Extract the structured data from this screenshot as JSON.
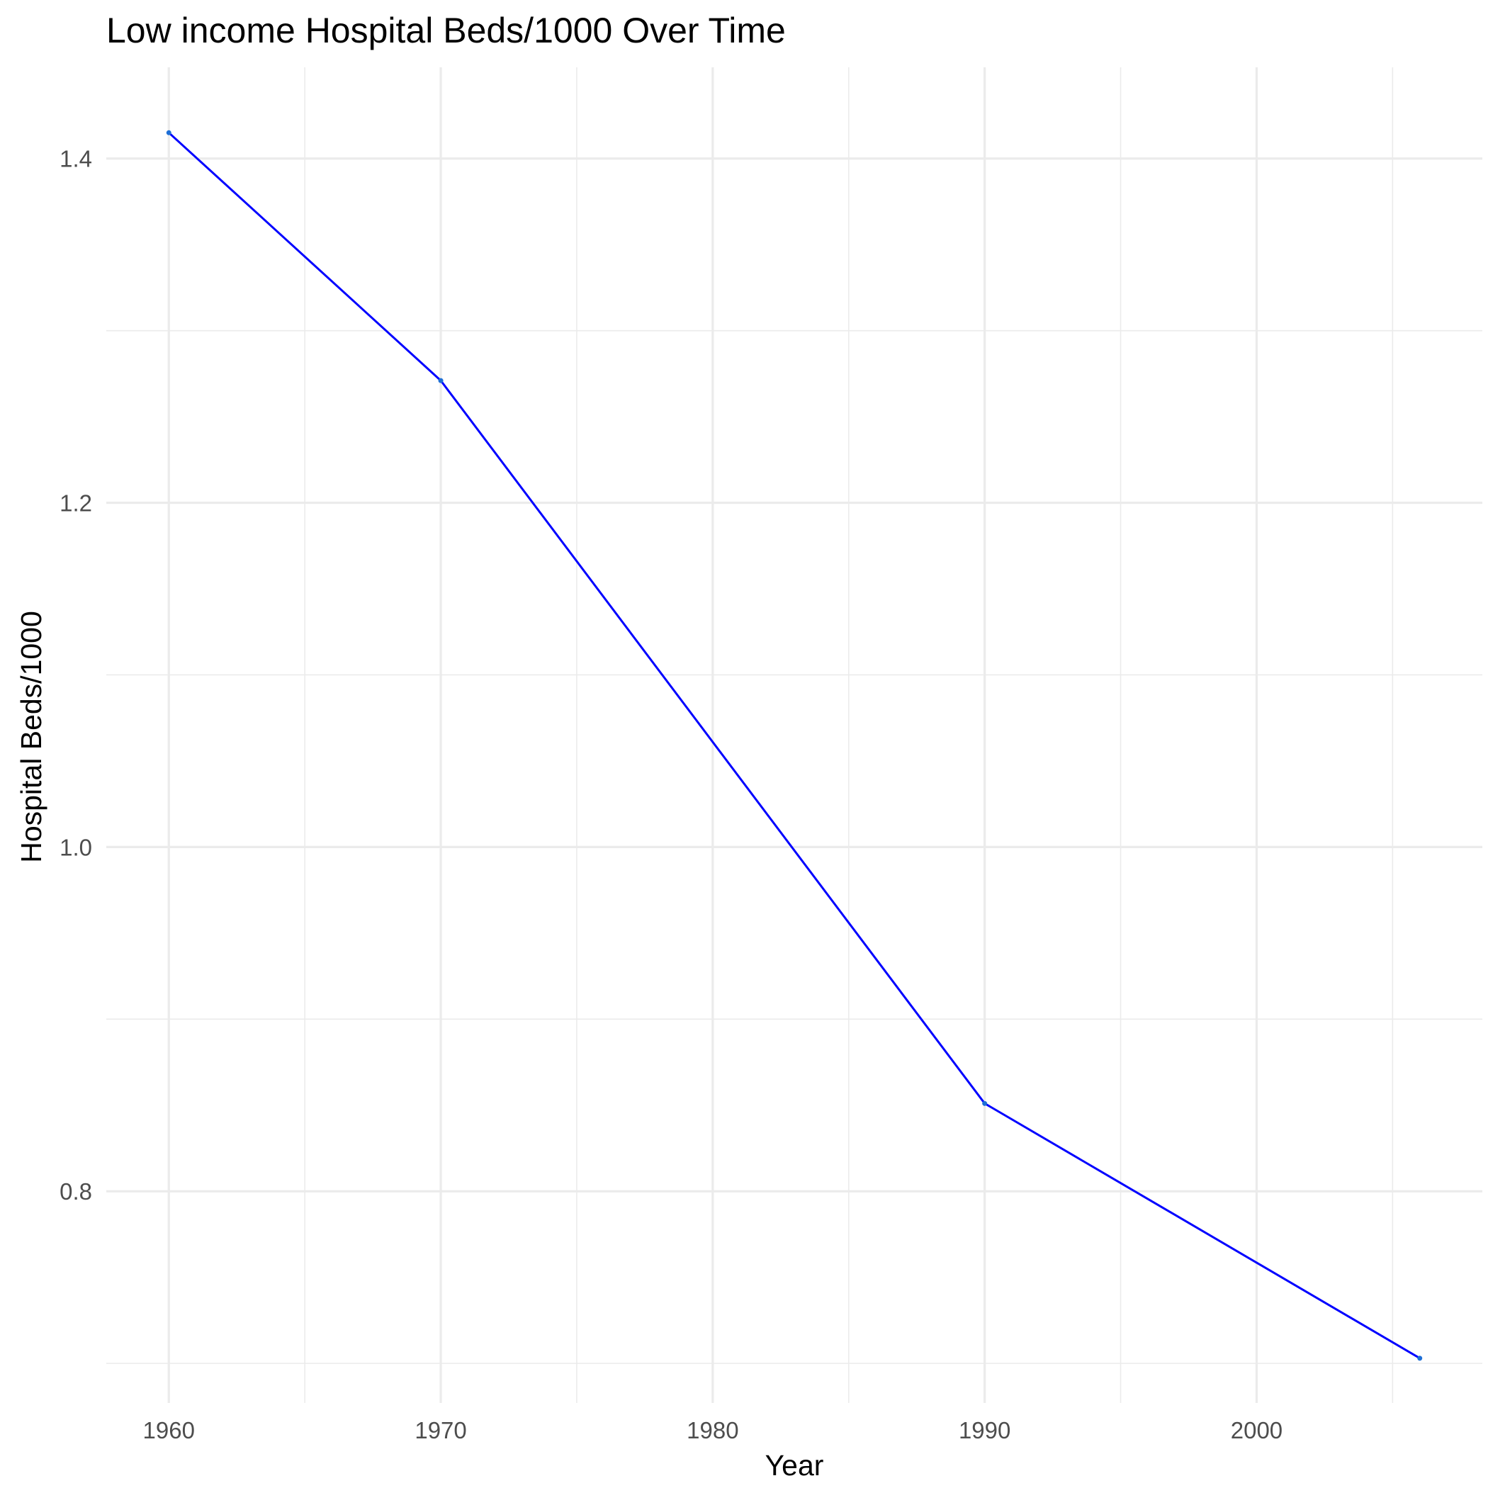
{
  "chart_data": {
    "type": "line",
    "title": "Low income Hospital Beds/1000 Over Time",
    "xlabel": "Year",
    "ylabel": "Hospital Beds/1000",
    "x": [
      1960,
      1970,
      1990,
      2006
    ],
    "series": [
      {
        "values": [
          1.415,
          1.271,
          0.851,
          0.703
        ]
      }
    ],
    "xlim": [
      1957.7,
      2008.3
    ],
    "ylim": [
      0.677,
      1.453
    ],
    "x_ticks": [
      1960,
      1970,
      1980,
      1990,
      2000
    ],
    "x_tick_labels": [
      "1960",
      "1970",
      "1980",
      "1990",
      "2000"
    ],
    "y_ticks": [
      0.8,
      1.0,
      1.2,
      1.4
    ],
    "y_tick_labels": [
      "0.8",
      "1.0",
      "1.2",
      "1.4"
    ],
    "x_minor_ticks": [
      1965,
      1975,
      1985,
      1995,
      2005
    ],
    "y_minor_ticks": [
      0.7,
      0.9,
      1.1,
      1.3
    ],
    "grid": true,
    "legend": "none",
    "colors": {
      "line": "#0000ff",
      "point": "#1e6fd6",
      "grid": "#ebebeb"
    }
  }
}
